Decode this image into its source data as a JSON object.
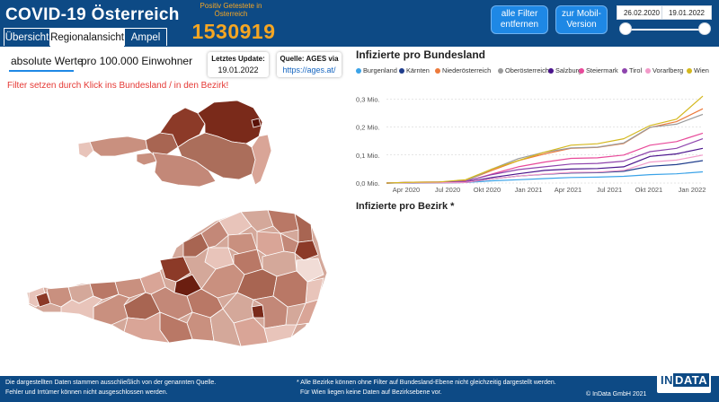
{
  "app": {
    "title": "COVID-19 Österreich"
  },
  "header": {
    "positive_label": "Positiv Getestete in Österreich",
    "positive_value": "1530919",
    "filter_button": "alle Filter entfernen",
    "mobile_button": "zur Mobil-Version",
    "date_from": "26.02.2020",
    "date_to": "19.01.2022"
  },
  "tabs": [
    "Übersicht",
    "Regionalansicht",
    "Ampel"
  ],
  "toggle": {
    "absolute": "absolute Werte",
    "per_capita": "pro 100.000 Einwohner"
  },
  "cards": {
    "update_label": "Letztes Update:",
    "update_value": "19.01.2022",
    "source_label": "Quelle: AGES via",
    "source_link": "https://ages.at/"
  },
  "filter_hint": "Filter setzen durch Klick ins Bundesland / in den Bezirk!",
  "district_title": "Infizierte pro Bezirk *",
  "footer": {
    "left_line1": "Die dargestellten Daten stammen ausschließlich von der genannten Quelle.",
    "left_line2": "Fehler und Irrtümer können nicht ausgeschlossen werden.",
    "right_line1": "* Alle Bezirke können ohne Filter auf Bundesland-Ebene nicht gleichzeitig dargestellt werden.",
    "right_line2": "Für Wien liegen keine Daten auf Bezirksebene vor.",
    "copyright": "© InData GmbH 2021"
  },
  "logo": {
    "part1": "IN",
    "part2": "DATA"
  },
  "colors": {
    "header_bg": "#0d4a85",
    "accent": "#f5a623",
    "button": "#1e88e5",
    "warning": "#e53935"
  },
  "chart_data": {
    "type": "line",
    "title": "Infizierte pro Bundesland",
    "xlabel": "",
    "ylabel": "",
    "x_ticks": [
      "Apr 2020",
      "Jul 2020",
      "Okt 2020",
      "Jan 2021",
      "Apr 2021",
      "Jul 2021",
      "Okt 2021",
      "Jan 2022"
    ],
    "y_ticks": [
      "0,0 Mio.",
      "0,1 Mio.",
      "0,2 Mio.",
      "0,3 Mio."
    ],
    "ylim": [
      0,
      0.32
    ],
    "x": [
      "2020-03",
      "2020-05",
      "2020-07",
      "2020-09",
      "2020-11",
      "2021-01",
      "2021-03",
      "2021-05",
      "2021-07",
      "2021-09",
      "2021-11",
      "2021-12",
      "2022-01"
    ],
    "legend_position": "top",
    "series": [
      {
        "name": "Burgenland",
        "color": "#3ba3e8",
        "values": [
          0,
          0,
          0.001,
          0.002,
          0.008,
          0.012,
          0.016,
          0.02,
          0.021,
          0.024,
          0.03,
          0.033,
          0.04
        ]
      },
      {
        "name": "Kärnten",
        "color": "#1f3d8c",
        "values": [
          0,
          0.001,
          0.001,
          0.002,
          0.015,
          0.025,
          0.031,
          0.036,
          0.037,
          0.042,
          0.06,
          0.066,
          0.08
        ]
      },
      {
        "name": "Niederösterreich",
        "color": "#ec7a3c",
        "values": [
          0,
          0.003,
          0.004,
          0.008,
          0.045,
          0.08,
          0.104,
          0.124,
          0.127,
          0.141,
          0.198,
          0.219,
          0.265
        ]
      },
      {
        "name": "Oberösterreich",
        "color": "#9a9a9a",
        "values": [
          0,
          0.002,
          0.003,
          0.006,
          0.05,
          0.087,
          0.11,
          0.125,
          0.128,
          0.143,
          0.199,
          0.21,
          0.245
        ]
      },
      {
        "name": "Salzburg",
        "color": "#4a148c",
        "values": [
          0,
          0.001,
          0.002,
          0.003,
          0.02,
          0.033,
          0.045,
          0.05,
          0.052,
          0.058,
          0.095,
          0.104,
          0.124
        ]
      },
      {
        "name": "Steiermark",
        "color": "#e84a9a",
        "values": [
          0,
          0.002,
          0.002,
          0.005,
          0.032,
          0.058,
          0.075,
          0.088,
          0.09,
          0.1,
          0.135,
          0.148,
          0.178
        ]
      },
      {
        "name": "Tirol",
        "color": "#8e44ad",
        "values": [
          0,
          0.003,
          0.004,
          0.006,
          0.03,
          0.048,
          0.058,
          0.068,
          0.07,
          0.078,
          0.112,
          0.124,
          0.158
        ]
      },
      {
        "name": "Vorarlberg",
        "color": "#f29ac9",
        "values": [
          0,
          0.001,
          0.001,
          0.002,
          0.015,
          0.025,
          0.032,
          0.038,
          0.039,
          0.045,
          0.075,
          0.082,
          0.1
        ]
      },
      {
        "name": "Wien",
        "color": "#d4b81e",
        "values": [
          0,
          0.003,
          0.004,
          0.012,
          0.05,
          0.08,
          0.11,
          0.135,
          0.14,
          0.158,
          0.205,
          0.228,
          0.31
        ]
      }
    ]
  }
}
